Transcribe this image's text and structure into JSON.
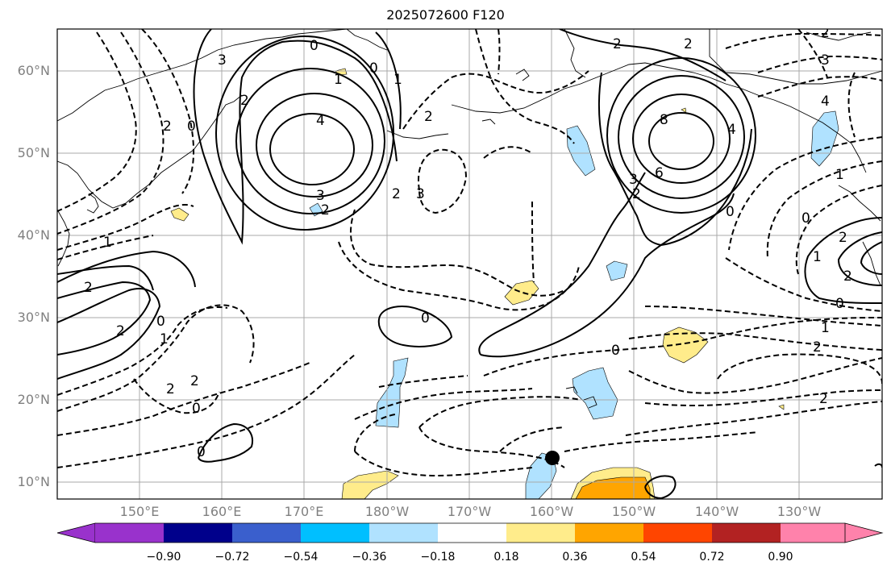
{
  "title": "2025072600 F120",
  "map": {
    "lat_labels": [
      "60°N",
      "50°N",
      "40°N",
      "30°N",
      "20°N",
      "10°N"
    ],
    "lon_labels": [
      "150°E",
      "160°E",
      "170°E",
      "180°W",
      "170°W",
      "160°W",
      "150°W",
      "140°W",
      "130°W"
    ],
    "contour_labels": [
      {
        "text": "0"
      },
      {
        "text": "1"
      },
      {
        "text": "0"
      },
      {
        "text": "1"
      },
      {
        "text": "2"
      },
      {
        "text": "4"
      },
      {
        "text": "3"
      },
      {
        "text": "2"
      },
      {
        "text": "2"
      },
      {
        "text": "3"
      },
      {
        "text": "2"
      },
      {
        "text": "8"
      },
      {
        "text": "6"
      },
      {
        "text": "4"
      },
      {
        "text": "3"
      },
      {
        "text": "2"
      },
      {
        "text": "0"
      },
      {
        "text": "2"
      },
      {
        "text": "3"
      },
      {
        "text": "4"
      },
      {
        "text": "1"
      },
      {
        "text": "0"
      },
      {
        "text": "2"
      },
      {
        "text": "1"
      },
      {
        "text": "2"
      },
      {
        "text": "0"
      },
      {
        "text": "1"
      },
      {
        "text": "2"
      },
      {
        "text": "2"
      },
      {
        "text": "2"
      },
      {
        "text": "1"
      },
      {
        "text": "0"
      },
      {
        "text": "2"
      },
      {
        "text": "2"
      },
      {
        "text": "0"
      },
      {
        "text": "0"
      },
      {
        "text": "0"
      },
      {
        "text": "1"
      },
      {
        "text": "2"
      },
      {
        "text": "2"
      },
      {
        "text": "0"
      },
      {
        "text": "0"
      },
      {
        "text": "2"
      },
      {
        "text": "3"
      },
      {
        "text": "2"
      }
    ],
    "marker": "storm center"
  },
  "colorbar": {
    "colors": [
      "#9932cc",
      "#00008b",
      "#3a5fcd",
      "#00bfff",
      "#b0e2ff",
      "#ffffff",
      "#ffec8b",
      "#ffa500",
      "#ff4500",
      "#b22222",
      "#ff82ab"
    ],
    "labels": [
      "−0.90",
      "−0.72",
      "−0.54",
      "−0.36",
      "−0.18",
      "0.18",
      "0.36",
      "0.54",
      "0.72",
      "0.90"
    ]
  }
}
